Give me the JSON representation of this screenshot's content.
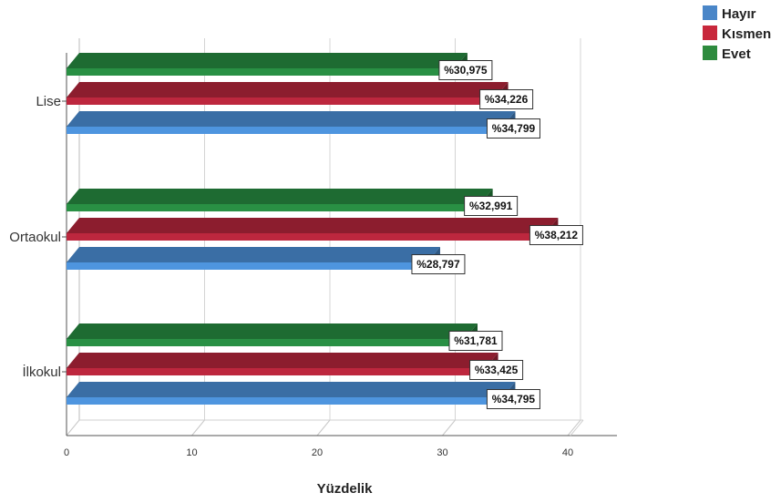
{
  "chart_data": {
    "type": "bar",
    "orientation": "horizontal",
    "three_d": true,
    "categories": [
      "Lise",
      "Ortaokul",
      "İlkokul"
    ],
    "series": [
      {
        "name": "Hayır",
        "color": "#3a6ea5",
        "values": [
          34.799,
          28.797,
          34.795
        ],
        "labels": [
          "%34,799",
          "%28,797",
          "%34,795"
        ]
      },
      {
        "name": "Kısmen",
        "color": "#8c1d2e",
        "values": [
          34.226,
          38.212,
          33.425
        ],
        "labels": [
          "%34,226",
          "%38,212",
          "%33,425"
        ]
      },
      {
        "name": "Evet",
        "color": "#1e6b32",
        "values": [
          30.975,
          32.991,
          31.781
        ],
        "labels": [
          "%30,975",
          "%32,991",
          "%31,781"
        ]
      }
    ],
    "xlabel": "Yüzdelik",
    "ylabel": "",
    "xlim": [
      0,
      44
    ],
    "xticks": [
      "0",
      "10",
      "20",
      "30",
      "40"
    ],
    "grid": true,
    "legend_position": "top-right"
  }
}
